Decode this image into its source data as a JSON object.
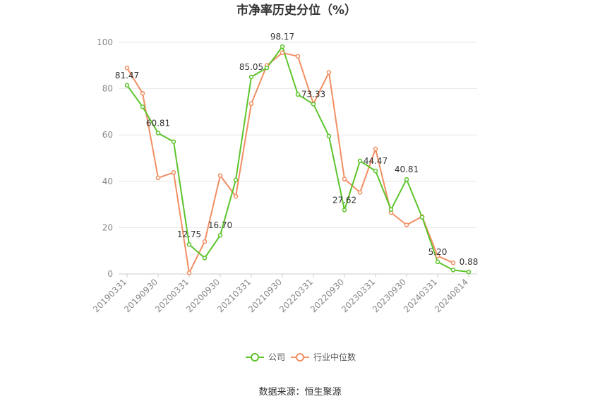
{
  "chart_data": {
    "type": "line",
    "title": "市净率历史分位（%）",
    "x": [
      "20190331",
      "20190630",
      "20190930",
      "20191231",
      "20200331",
      "20200630",
      "20200930",
      "20201231",
      "20210331",
      "20210630",
      "20210930",
      "20211231",
      "20220331",
      "20220630",
      "20220930",
      "20221231",
      "20230331",
      "20230630",
      "20230930",
      "20231231",
      "20240331",
      "20240630",
      "20240814"
    ],
    "x_tick_labels": [
      "20190331",
      "20190930",
      "20200331",
      "20200930",
      "20210331",
      "20210930",
      "20220331",
      "20220930",
      "20230331",
      "20230930",
      "20240331",
      "20240814"
    ],
    "ylim": [
      0,
      100
    ],
    "y_ticks": [
      "0",
      "20",
      "40",
      "60",
      "80",
      "100"
    ],
    "grid": true,
    "legend_position": "bottom",
    "series": [
      {
        "name": "公司",
        "color": "#5cc42b",
        "values": [
          81.47,
          72.2,
          60.81,
          57.1,
          12.75,
          6.9,
          16.7,
          40.6,
          85.05,
          89.0,
          98.17,
          77.5,
          73.33,
          59.5,
          27.62,
          48.8,
          44.47,
          27.8,
          40.81,
          24.5,
          5.2,
          1.7,
          0.88
        ],
        "labels": [
          "81.47",
          null,
          "60.81",
          null,
          "12.75",
          null,
          "16.70",
          null,
          "85.05",
          null,
          "98.17",
          null,
          "73.33",
          null,
          "27.62",
          null,
          "44.47",
          null,
          "40.81",
          null,
          "5.20",
          null,
          "0.88"
        ]
      },
      {
        "name": "行业中位数",
        "color": "#f28e62",
        "values": [
          89.0,
          78.0,
          41.5,
          43.8,
          0.5,
          14.0,
          42.5,
          33.5,
          73.5,
          90.0,
          95.5,
          94.0,
          73.5,
          87.0,
          41.0,
          35.2,
          54.0,
          26.5,
          21.2,
          24.8,
          7.8,
          4.8,
          null
        ]
      }
    ]
  },
  "footer": {
    "source": "数据来源：恒生聚源"
  }
}
